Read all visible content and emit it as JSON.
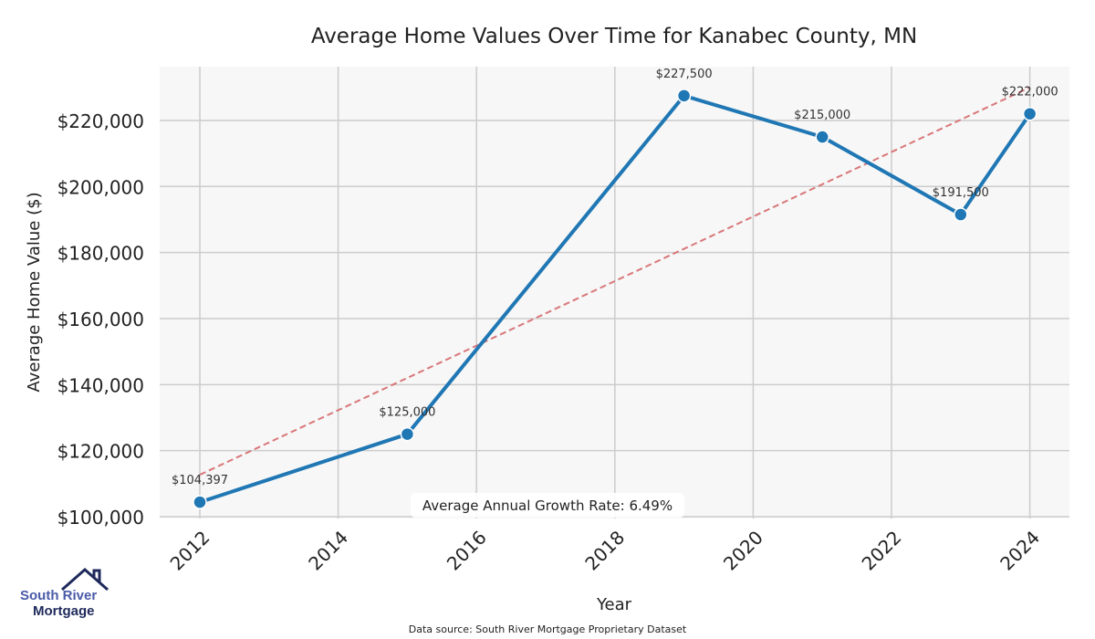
{
  "chart_data": {
    "type": "line",
    "title": "Average Home Values Over Time for Kanabec County, MN",
    "xlabel": "Year",
    "ylabel": "Average Home Value ($)",
    "xlim": [
      2011.4,
      2024.6
    ],
    "ylim": [
      99500,
      236000
    ],
    "grid": true,
    "x_ticks": [
      2012,
      2014,
      2016,
      2018,
      2020,
      2022,
      2024
    ],
    "y_ticks": [
      100000,
      120000,
      140000,
      160000,
      180000,
      200000,
      220000
    ],
    "y_tick_labels": [
      "$100,000",
      "$120,000",
      "$140,000",
      "$160,000",
      "$180,000",
      "$200,000",
      "$220,000"
    ],
    "series": [
      {
        "name": "Average Home Value",
        "color": "#1f77b4",
        "x": [
          2012,
          2015,
          2019,
          2021,
          2023,
          2024
        ],
        "y": [
          104397,
          125000,
          227500,
          215000,
          191500,
          222000
        ],
        "labels": [
          "$104,397",
          "$125,000",
          "$227,500",
          "$215,000",
          "$191,500",
          "$222,000"
        ]
      },
      {
        "name": "Trend",
        "color": "#d9777a",
        "style": "dashed",
        "x": [
          2012,
          2024
        ],
        "y": [
          112700,
          230000
        ]
      }
    ],
    "annotation": "Average Annual Growth Rate: 6.49%",
    "source": "Data source: South River Mortgage Proprietary Dataset"
  },
  "logo": {
    "line1": "South River",
    "line2": "Mortgage"
  }
}
